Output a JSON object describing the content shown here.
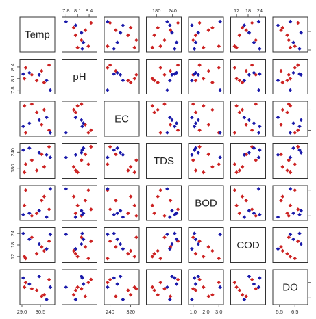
{
  "chart_data": {
    "type": "scatter",
    "subtype": "scatterplot-matrix",
    "title": "",
    "variables": [
      "Temp",
      "pH",
      "EC",
      "TDS",
      "BOD",
      "COD",
      "DO"
    ],
    "group_colors": [
      "#cc2222",
      "#1a1aaa"
    ],
    "ranges": {
      "Temp": [
        29.0,
        31.5
      ],
      "pH": [
        7.75,
        8.55
      ],
      "EC": [
        225,
        345
      ],
      "TDS": [
        150,
        265
      ],
      "BOD": [
        0.8,
        3.2
      ],
      "COD": [
        10,
        26
      ],
      "DO": [
        5.2,
        7.2
      ]
    },
    "axis_ticks": {
      "top": [
        {
          "var": "pH",
          "ticks": [
            7.8,
            8.1,
            8.4
          ],
          "labels": [
            "7.8",
            "8.1",
            "8.4"
          ]
        },
        {
          "var": "TDS",
          "ticks": [
            180,
            240
          ],
          "labels": [
            "180",
            "240"
          ]
        },
        {
          "var": "COD",
          "ticks": [
            12,
            18,
            24
          ],
          "labels": [
            "12",
            "18",
            "24"
          ]
        }
      ],
      "bottom": [
        {
          "var": "Temp",
          "ticks": [
            29.0,
            30.5
          ],
          "labels": [
            "29.0",
            "30.5"
          ]
        },
        {
          "var": "EC",
          "ticks": [
            240,
            320
          ],
          "labels": [
            "240",
            "320"
          ]
        },
        {
          "var": "BOD",
          "ticks": [
            1.0,
            2.0,
            3.0
          ],
          "labels": [
            "1.0",
            "2.0",
            "3.0"
          ]
        },
        {
          "var": "DO",
          "ticks": [
            5.5,
            6.5
          ],
          "labels": [
            "5.5",
            "6.5"
          ]
        }
      ],
      "left": [
        {
          "var": "pH",
          "ticks": [
            7.8,
            8.1,
            8.4
          ],
          "labels": [
            "7.8",
            "8.1",
            "8.4"
          ]
        },
        {
          "var": "TDS",
          "ticks": [
            180,
            240
          ],
          "labels": [
            "180",
            "240"
          ]
        },
        {
          "var": "COD",
          "ticks": [
            12,
            18,
            24
          ],
          "labels": [
            "12",
            "18",
            "24"
          ]
        }
      ],
      "right": [
        {
          "var": "Temp",
          "ticks": [
            29.0,
            30.5
          ],
          "labels": [
            "",
            ""
          ]
        },
        {
          "var": "EC",
          "ticks": [
            240,
            320
          ],
          "labels": [
            "",
            ""
          ]
        },
        {
          "var": "BOD",
          "ticks": [
            1.0,
            2.0,
            3.0
          ],
          "labels": [
            "",
            "",
            ""
          ]
        },
        {
          "var": "DO",
          "ticks": [
            5.5,
            6.5
          ],
          "labels": [
            "",
            ""
          ]
        }
      ]
    },
    "observations": [
      {
        "group": 0,
        "Temp": 29.2,
        "pH": 8.1,
        "EC": 335,
        "TDS": 165,
        "BOD": 1.8,
        "COD": 12.0,
        "DO": 6.2
      },
      {
        "group": 0,
        "Temp": 30.2,
        "pH": 8.05,
        "EC": 310,
        "TDS": 172,
        "BOD": 1.2,
        "COD": 13.5,
        "DO": 6.0
      },
      {
        "group": 0,
        "Temp": 30.8,
        "pH": 8.0,
        "EC": 320,
        "TDS": 185,
        "BOD": 2.5,
        "COD": 15.0,
        "DO": 5.7
      },
      {
        "group": 0,
        "Temp": 31.2,
        "pH": 8.45,
        "EC": 240,
        "TDS": 260,
        "BOD": 1.5,
        "COD": 20.0,
        "DO": 6.7
      },
      {
        "group": 0,
        "Temp": 30.6,
        "pH": 8.3,
        "EC": 262,
        "TDS": 232,
        "BOD": 2.2,
        "COD": 17.0,
        "DO": 5.6
      },
      {
        "group": 0,
        "Temp": 29.8,
        "pH": 8.2,
        "EC": 342,
        "TDS": 210,
        "BOD": 1.0,
        "COD": 22.0,
        "DO": 6.1
      },
      {
        "group": 0,
        "Temp": 29.3,
        "pH": 8.38,
        "EC": 230,
        "TDS": 195,
        "BOD": 3.0,
        "COD": 11.0,
        "DO": 6.5
      },
      {
        "group": 1,
        "Temp": 29.1,
        "pH": 8.22,
        "EC": 255,
        "TDS": 248,
        "BOD": 1.1,
        "COD": 24.0,
        "DO": 6.8
      },
      {
        "group": 1,
        "Temp": 29.6,
        "pH": 8.25,
        "EC": 268,
        "TDS": 255,
        "BOD": 1.2,
        "COD": 21.0,
        "DO": 6.4
      },
      {
        "group": 1,
        "Temp": 30.4,
        "pH": 8.2,
        "EC": 280,
        "TDS": 238,
        "BOD": 1.4,
        "COD": 18.5,
        "DO": 6.9
      },
      {
        "group": 1,
        "Temp": 31.0,
        "pH": 8.05,
        "EC": 290,
        "TDS": 230,
        "BOD": 0.9,
        "COD": 16.0,
        "DO": 5.4
      },
      {
        "group": 1,
        "Temp": 31.3,
        "pH": 7.8,
        "EC": 230,
        "TDS": 220,
        "BOD": 3.1,
        "COD": 23.5,
        "DO": 6.2
      }
    ]
  }
}
